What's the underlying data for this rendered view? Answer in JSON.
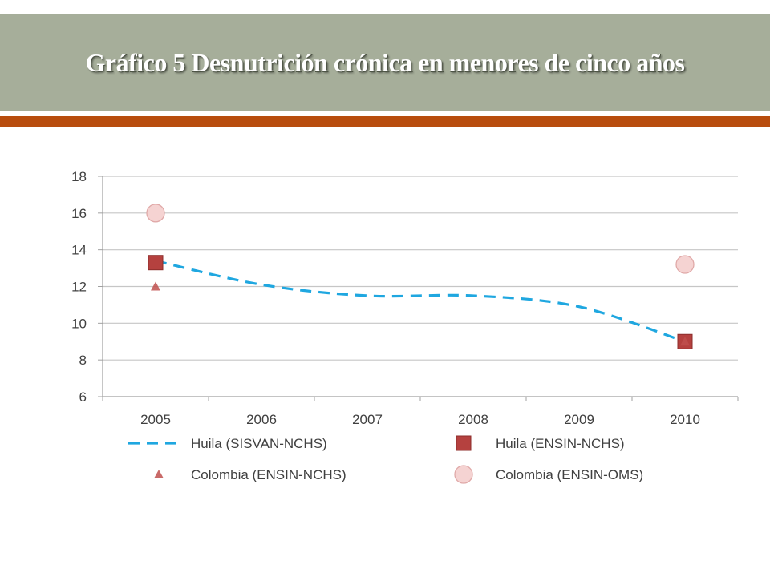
{
  "slide": {
    "title": "Gráfico 5 Desnutrición crónica en menores de cinco años",
    "colors": {
      "title_band": "#a6ae9a",
      "rule": "#b84d0e"
    }
  },
  "chart_data": {
    "type": "line",
    "title": "",
    "xlabel": "",
    "ylabel": "",
    "categories": [
      "2005",
      "2006",
      "2007",
      "2008",
      "2009",
      "2010"
    ],
    "ylim": [
      6,
      18
    ],
    "yticks": [
      6,
      8,
      10,
      12,
      14,
      16,
      18
    ],
    "grid": true,
    "legend_position": "bottom",
    "series": [
      {
        "name": "Huila (SISVAN-NCHS)",
        "kind": "line",
        "style": "dashed",
        "color": "#1fa7e0",
        "x": [
          "2005",
          "2006",
          "2007",
          "2008",
          "2009",
          "2010"
        ],
        "values": [
          13.4,
          12.1,
          11.5,
          11.5,
          10.9,
          9.0
        ]
      },
      {
        "name": "Huila (ENSIN-NCHS)",
        "kind": "marker",
        "marker": "square",
        "color": "#b5413f",
        "x": [
          "2005",
          "2010"
        ],
        "values": [
          13.3,
          9.0
        ]
      },
      {
        "name": "Colombia (ENSIN-NCHS)",
        "kind": "marker",
        "marker": "triangle",
        "color": "#c0504d",
        "x": [
          "2005",
          "2010"
        ],
        "values": [
          12.0,
          9.0
        ]
      },
      {
        "name": "Colombia (ENSIN-OMS)",
        "kind": "marker",
        "marker": "circle",
        "color": "#f5d3d2",
        "x": [
          "2005",
          "2010"
        ],
        "values": [
          16.0,
          13.2
        ]
      }
    ]
  }
}
